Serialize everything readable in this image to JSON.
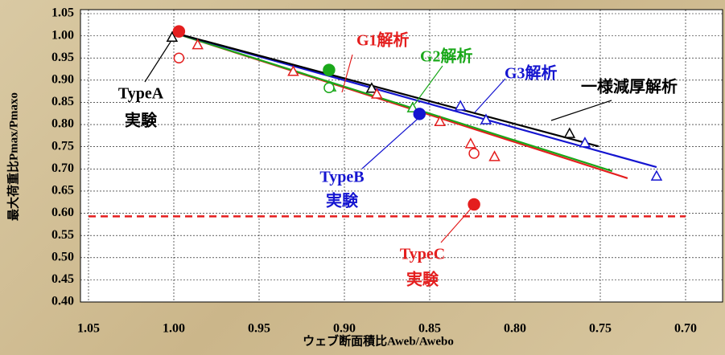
{
  "chart_data": {
    "type": "scatter",
    "y_label": "最大荷重比Pmax/Pmaxo",
    "x_label": "ウェブ断面積比Aweb/Awebo",
    "xlim": [
      1.05,
      0.7
    ],
    "xticks": [
      1.05,
      {
        "value": 1.0,
        "label": "1.00"
      },
      0.95,
      {
        "value": 0.9,
        "label": "0.90"
      },
      0.85,
      {
        "value": 0.8,
        "label": "0.80"
      },
      0.75,
      {
        "value": 0.7,
        "label": "0.70"
      }
    ],
    "ylim": [
      0.4,
      1.05
    ],
    "yticks": [
      1.05,
      {
        "value": 1.0,
        "label": "1.00"
      },
      0.95,
      {
        "value": 0.9,
        "label": "0.90"
      },
      0.85,
      {
        "value": 0.8,
        "label": "0.80"
      },
      0.75,
      {
        "value": 0.7,
        "label": "0.70"
      },
      0.65,
      {
        "value": 0.6,
        "label": "0.60"
      },
      0.55,
      {
        "value": 0.5,
        "label": "0.50"
      },
      0.45,
      {
        "value": 0.4,
        "label": "0.40"
      }
    ],
    "grid": true,
    "series": [
      {
        "mode": "line",
        "color": "#e41e1e",
        "x": [
          1.001,
          0.734
        ],
        "values": [
          1.008,
          0.679
        ]
      },
      {
        "mode": "line",
        "color": "#1aa81a",
        "x": [
          1.001,
          0.743
        ],
        "values": [
          1.008,
          0.695
        ]
      },
      {
        "mode": "line",
        "color": "#1515d0",
        "x": [
          1.001,
          0.717
        ],
        "values": [
          1.008,
          0.704
        ]
      },
      {
        "mode": "line",
        "color": "#000000",
        "x": [
          1.001,
          0.751
        ],
        "values": [
          1.008,
          0.751
        ]
      },
      {
        "mode": "dashed-line",
        "color": "#e41e1e",
        "x": [
          1.05,
          0.7
        ],
        "values": [
          0.593,
          0.593
        ]
      },
      {
        "mode": "triangle",
        "color": "#000000",
        "x": [
          1.001,
          0.884,
          0.768
        ],
        "values": [
          0.997,
          0.882,
          0.78
        ]
      },
      {
        "mode": "triangle",
        "color": "#e41e1e",
        "x": [
          0.986,
          0.93,
          0.881,
          0.844,
          0.826,
          0.812
        ],
        "values": [
          0.98,
          0.92,
          0.869,
          0.807,
          0.757,
          0.728
        ]
      },
      {
        "mode": "triangle",
        "color": "#1515d0",
        "x": [
          0.832,
          0.817,
          0.759,
          0.717
        ],
        "values": [
          0.842,
          0.811,
          0.759,
          0.684
        ]
      },
      {
        "mode": "triangle",
        "color": "#1aa81a",
        "x": [
          0.908,
          0.86
        ],
        "values": [
          0.885,
          0.838
        ]
      },
      {
        "mode": "open-circle",
        "color": "#e41e1e",
        "x": [
          0.997,
          0.824
        ],
        "values": [
          0.95,
          0.735
        ]
      },
      {
        "mode": "open-circle",
        "color": "#1aa81a",
        "x": [
          0.909
        ],
        "values": [
          0.883
        ]
      },
      {
        "mode": "circle",
        "color": "#e41e1e",
        "x": [
          0.997,
          0.824
        ],
        "values": [
          1.01,
          0.62
        ]
      },
      {
        "mode": "circle",
        "color": "#1aa81a",
        "x": [
          0.909
        ],
        "values": [
          0.923
        ]
      },
      {
        "mode": "circle",
        "color": "#1515d0",
        "x": [
          0.856
        ],
        "values": [
          0.824
        ]
      }
    ],
    "annotations": [
      "G1解析",
      "G2解析",
      "G3解析",
      "一様減厚解析",
      "TypeA",
      "実験",
      "TypeB",
      "実験",
      "TypeC",
      "実験"
    ]
  }
}
